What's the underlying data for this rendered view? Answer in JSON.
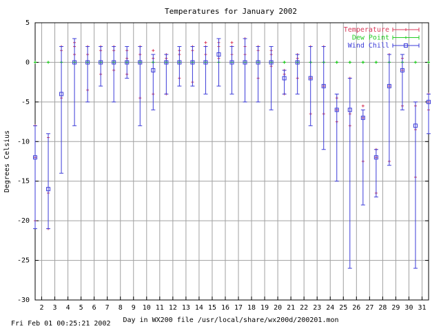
{
  "footer": "Fri Feb 01 00:25:21 2002",
  "chart_data": {
    "type": "errorbar",
    "title": "Temperatures for January 2002",
    "xlabel": "Day in WX200 file /usr/local/share/wx200d/200201.mon",
    "ylabel": "Degrees Celsius",
    "xlim": [
      1.5,
      31.5
    ],
    "ylim": [
      -30,
      5
    ],
    "x_ticks": [
      2,
      3,
      4,
      5,
      6,
      7,
      8,
      9,
      10,
      11,
      12,
      13,
      14,
      15,
      16,
      17,
      18,
      19,
      20,
      21,
      22,
      23,
      24,
      25,
      26,
      27,
      28,
      29,
      30,
      31
    ],
    "y_ticks": [
      5,
      0,
      -5,
      -10,
      -15,
      -20,
      -25,
      -30
    ],
    "grid": true,
    "legend_position": "top-right",
    "series": [
      {
        "name": "Temperature",
        "color": "#d83a5a",
        "marker": "+",
        "points": [
          {
            "x": 1.5,
            "mean": -12,
            "min": -20,
            "max": -8
          },
          {
            "x": 2.5,
            "mean": -16.5,
            "min": -21,
            "max": -9.5
          },
          {
            "x": 3.5,
            "mean": 1.5,
            "min": -4.5,
            "max": 2
          },
          {
            "x": 4.5,
            "mean": 2,
            "min": 1,
            "max": 2.5
          },
          {
            "x": 5.5,
            "mean": 1,
            "min": -3.5,
            "max": 2
          },
          {
            "x": 6.5,
            "mean": 1.5,
            "min": -1.5,
            "max": 2
          },
          {
            "x": 7.5,
            "mean": 1.5,
            "min": -1,
            "max": 2
          },
          {
            "x": 8.5,
            "mean": 0.5,
            "min": -1.5,
            "max": 1.5
          },
          {
            "x": 9.5,
            "mean": 1,
            "min": -4.5,
            "max": 2
          },
          {
            "x": 10.5,
            "mean": 0.5,
            "min": -4,
            "max": 1.5
          },
          {
            "x": 11.5,
            "mean": 0.5,
            "min": -4,
            "max": 1
          },
          {
            "x": 12.5,
            "mean": 1,
            "min": -2,
            "max": 1.5
          },
          {
            "x": 13.5,
            "mean": 1.5,
            "min": -2.5,
            "max": 2
          },
          {
            "x": 14.5,
            "mean": 2,
            "min": 1,
            "max": 2.5
          },
          {
            "x": 15.5,
            "mean": 2,
            "min": 0.5,
            "max": 2.5
          },
          {
            "x": 16.5,
            "mean": 2,
            "min": 1,
            "max": 2.5
          },
          {
            "x": 17.5,
            "mean": 2,
            "min": 1,
            "max": 3
          },
          {
            "x": 18.5,
            "mean": 1.5,
            "min": -2,
            "max": 2
          },
          {
            "x": 19.5,
            "mean": 1,
            "min": -0.5,
            "max": 1.5
          },
          {
            "x": 20.5,
            "mean": -1.5,
            "min": -4,
            "max": -1
          },
          {
            "x": 21.5,
            "mean": 0.5,
            "min": -2,
            "max": 1
          },
          {
            "x": 22.5,
            "mean": -2,
            "min": -6.5,
            "max": 2
          },
          {
            "x": 23.5,
            "mean": -3,
            "min": -6.5,
            "max": 2
          },
          {
            "x": 24.5,
            "mean": -6,
            "min": -7.5,
            "max": -4.5
          },
          {
            "x": 25.5,
            "mean": -6.5,
            "min": -8,
            "max": -2
          },
          {
            "x": 26.5,
            "mean": -7,
            "min": -12.5,
            "max": -5.5
          },
          {
            "x": 27.5,
            "mean": -12,
            "min": -16.5,
            "max": -11
          },
          {
            "x": 28.5,
            "mean": -3,
            "min": -12.5,
            "max": 1
          },
          {
            "x": 29.5,
            "mean": -1,
            "min": -5.5,
            "max": 0.5
          },
          {
            "x": 30.5,
            "mean": -8.5,
            "min": -14.5,
            "max": -5.5
          },
          {
            "x": 31.5,
            "mean": -5,
            "min": -6,
            "max": -4
          }
        ]
      },
      {
        "name": "Dew Point",
        "color": "#22cc22",
        "marker": "+",
        "points": [
          {
            "x": 1.5,
            "mean": 0,
            "min": 0,
            "max": 0
          },
          {
            "x": 2.5,
            "mean": 0,
            "min": 0,
            "max": 0
          },
          {
            "x": 3.5,
            "mean": 0,
            "min": 0,
            "max": 0
          },
          {
            "x": 4.5,
            "mean": 0,
            "min": 0,
            "max": 0
          },
          {
            "x": 5.5,
            "mean": 0,
            "min": 0,
            "max": 0
          },
          {
            "x": 6.5,
            "mean": 0,
            "min": 0,
            "max": 0
          },
          {
            "x": 7.5,
            "mean": 0,
            "min": 0,
            "max": 0
          },
          {
            "x": 8.5,
            "mean": 0,
            "min": 0,
            "max": 0
          },
          {
            "x": 9.5,
            "mean": 0,
            "min": 0,
            "max": 0
          },
          {
            "x": 10.5,
            "mean": 0,
            "min": 0,
            "max": 0
          },
          {
            "x": 11.5,
            "mean": 0,
            "min": 0,
            "max": 0
          },
          {
            "x": 12.5,
            "mean": 0,
            "min": 0,
            "max": 0
          },
          {
            "x": 13.5,
            "mean": 0,
            "min": 0,
            "max": 0
          },
          {
            "x": 14.5,
            "mean": 0,
            "min": 0,
            "max": 0
          },
          {
            "x": 15.5,
            "mean": 0,
            "min": 0,
            "max": 0
          },
          {
            "x": 16.5,
            "mean": 0,
            "min": 0,
            "max": 0
          },
          {
            "x": 17.5,
            "mean": 0,
            "min": 0,
            "max": 0
          },
          {
            "x": 18.5,
            "mean": 0,
            "min": 0,
            "max": 0
          },
          {
            "x": 19.5,
            "mean": 0,
            "min": 0,
            "max": 0
          },
          {
            "x": 20.5,
            "mean": 0,
            "min": 0,
            "max": 0
          },
          {
            "x": 21.5,
            "mean": 0,
            "min": 0,
            "max": 0
          },
          {
            "x": 22.5,
            "mean": 0,
            "min": 0,
            "max": 0
          },
          {
            "x": 23.5,
            "mean": 0,
            "min": 0,
            "max": 0
          },
          {
            "x": 24.5,
            "mean": 0,
            "min": 0,
            "max": 0
          },
          {
            "x": 25.5,
            "mean": 0,
            "min": 0,
            "max": 0
          },
          {
            "x": 26.5,
            "mean": 0,
            "min": 0,
            "max": 0
          },
          {
            "x": 27.5,
            "mean": 0,
            "min": 0,
            "max": 0
          },
          {
            "x": 28.5,
            "mean": 0,
            "min": 0,
            "max": 0
          },
          {
            "x": 29.5,
            "mean": 0,
            "min": 0,
            "max": 0
          },
          {
            "x": 30.5,
            "mean": 0,
            "min": 0,
            "max": 0
          },
          {
            "x": 31.5,
            "mean": 0,
            "min": 0,
            "max": 0
          }
        ]
      },
      {
        "name": "Wind Chill",
        "color": "#3a3ad8",
        "marker": "square",
        "points": [
          {
            "x": 1.5,
            "mean": -12,
            "min": -21,
            "max": -8
          },
          {
            "x": 2.5,
            "mean": -16,
            "min": -21,
            "max": -9
          },
          {
            "x": 3.5,
            "mean": -4,
            "min": -14,
            "max": 2
          },
          {
            "x": 4.5,
            "mean": 0,
            "min": -8,
            "max": 3
          },
          {
            "x": 5.5,
            "mean": 0,
            "min": -5,
            "max": 2
          },
          {
            "x": 6.5,
            "mean": 0,
            "min": -3,
            "max": 2
          },
          {
            "x": 7.5,
            "mean": 0,
            "min": -5,
            "max": 2
          },
          {
            "x": 8.5,
            "mean": 0,
            "min": -2,
            "max": 2
          },
          {
            "x": 9.5,
            "mean": 0,
            "min": -8,
            "max": 2
          },
          {
            "x": 10.5,
            "mean": -1,
            "min": -6,
            "max": 1
          },
          {
            "x": 11.5,
            "mean": 0,
            "min": -4,
            "max": 1
          },
          {
            "x": 12.5,
            "mean": 0,
            "min": -3,
            "max": 2
          },
          {
            "x": 13.5,
            "mean": 0,
            "min": -3,
            "max": 2
          },
          {
            "x": 14.5,
            "mean": 0,
            "min": -4,
            "max": 2
          },
          {
            "x": 15.5,
            "mean": 1,
            "min": -3,
            "max": 3
          },
          {
            "x": 16.5,
            "mean": 0,
            "min": -4,
            "max": 2
          },
          {
            "x": 17.5,
            "mean": 0,
            "min": -5,
            "max": 3
          },
          {
            "x": 18.5,
            "mean": 0,
            "min": -5,
            "max": 2
          },
          {
            "x": 19.5,
            "mean": 0,
            "min": -6,
            "max": 2
          },
          {
            "x": 20.5,
            "mean": -2,
            "min": -4,
            "max": -1
          },
          {
            "x": 21.5,
            "mean": 0,
            "min": -4,
            "max": 1
          },
          {
            "x": 22.5,
            "mean": -2,
            "min": -8,
            "max": 2
          },
          {
            "x": 23.5,
            "mean": -3,
            "min": -11,
            "max": 2
          },
          {
            "x": 24.5,
            "mean": -6,
            "min": -15,
            "max": -4
          },
          {
            "x": 25.5,
            "mean": -6,
            "min": -26,
            "max": -2
          },
          {
            "x": 26.5,
            "mean": -7,
            "min": -18,
            "max": -6
          },
          {
            "x": 27.5,
            "mean": -12,
            "min": -17,
            "max": -11
          },
          {
            "x": 28.5,
            "mean": -3,
            "min": -13,
            "max": 1
          },
          {
            "x": 29.5,
            "mean": -1,
            "min": -6,
            "max": 1
          },
          {
            "x": 30.5,
            "mean": -8,
            "min": -26,
            "max": -5
          },
          {
            "x": 31.5,
            "mean": -5,
            "min": -9,
            "max": -4
          }
        ]
      }
    ]
  }
}
